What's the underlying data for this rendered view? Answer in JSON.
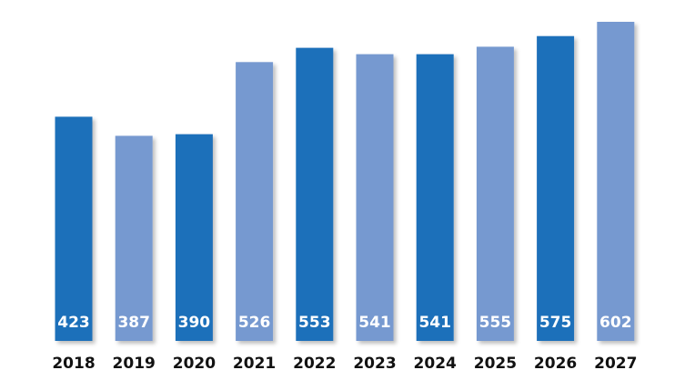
{
  "chart_data": {
    "type": "bar",
    "categories": [
      "2018",
      "2019",
      "2020",
      "2021",
      "2022",
      "2023",
      "2024",
      "2025",
      "2026",
      "2027"
    ],
    "values": [
      423,
      387,
      390,
      526,
      553,
      541,
      541,
      555,
      575,
      602
    ],
    "bar_colors": [
      "#1f6fba",
      "#7699d0",
      "#1f6fba",
      "#7699d0",
      "#1f6fba",
      "#7699d0",
      "#1f6fba",
      "#7699d0",
      "#1f6fba",
      "#7699d0"
    ],
    "data_labels": true,
    "data_label_color": "#ffffff",
    "axis_label_color": "#111111",
    "ylim": [
      0,
      620
    ],
    "grid": false,
    "legend": "none",
    "title": "",
    "xlabel": "",
    "ylabel": ""
  }
}
